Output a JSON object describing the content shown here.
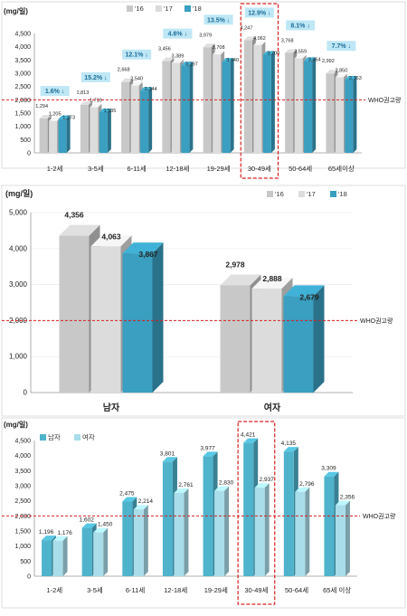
{
  "colors": {
    "c16": "#c8c8c8",
    "c17": "#dcdcdc",
    "c18": "#3a9fc0",
    "male": "#4fb3cc",
    "female": "#a9dde9",
    "who": "#d62020",
    "highlight": "#d62020",
    "badge_bg": "#bfe7f5",
    "badge_text": "#1a6d99"
  },
  "chart_data": [
    {
      "type": "bar",
      "unit_label": "(mg/일)",
      "categories": [
        "1-2세",
        "3-5세",
        "6-11세",
        "12-18세",
        "19-29세",
        "30-49세",
        "50-64세",
        "65세이상"
      ],
      "series": [
        {
          "name": "'16",
          "values": [
            1294,
            1813,
            2668,
            3456,
            3979,
            4247,
            3768,
            2992
          ]
        },
        {
          "name": "'17",
          "values": [
            1205,
            1719,
            2540,
            3389,
            3708,
            4062,
            3559,
            2850
          ]
        },
        {
          "name": "'18",
          "values": [
            1273,
            1535,
            2344,
            3297,
            3440,
            3700,
            3464,
            2763
          ]
        }
      ],
      "data_labels": [
        [
          "1,294",
          "1,205",
          "1,273"
        ],
        [
          "1,813",
          "1,719",
          "1,535"
        ],
        [
          "2,668",
          "2,540",
          "2,344"
        ],
        [
          "3,456",
          "3,389",
          "3,297"
        ],
        [
          "3,979",
          "3,708",
          "3,440"
        ],
        [
          "4,247",
          "4,062",
          "3,700"
        ],
        [
          "3,768",
          "3,559",
          "3,464"
        ],
        [
          "2,992",
          "2,850",
          "2,763"
        ]
      ],
      "change_badges": [
        "1.6% ↓",
        "15.2% ↓",
        "12.1% ↓",
        "4.6% ↓",
        "13.5% ↓",
        "12.9% ↓",
        "8.1% ↓",
        "7.7% ↓"
      ],
      "ylim": [
        0,
        4500
      ],
      "yticks": [
        "0",
        "500",
        "1,000",
        "1,500",
        "2,000",
        "2,500",
        "3,000",
        "3,500",
        "4,000",
        "4,500"
      ],
      "reference_line": {
        "value": 2000,
        "label": "WHO권고량"
      },
      "highlight_category": "30-49세",
      "legend": [
        "'16",
        "'17",
        "'18"
      ]
    },
    {
      "type": "bar",
      "unit_label": "(mg/일)",
      "categories": [
        "남자",
        "여자"
      ],
      "series": [
        {
          "name": "'16",
          "values": [
            4356,
            2978
          ]
        },
        {
          "name": "'17",
          "values": [
            4063,
            2888
          ]
        },
        {
          "name": "'18",
          "values": [
            3867,
            2679
          ]
        }
      ],
      "data_labels": [
        [
          "4,356",
          "4,063",
          "3,867"
        ],
        [
          "2,978",
          "2,888",
          "2,679"
        ]
      ],
      "ylim": [
        0,
        5000
      ],
      "yticks": [
        "0",
        "1,000",
        "2,000",
        "3,000",
        "4,000",
        "5,000"
      ],
      "reference_line": {
        "value": 2000,
        "label": "WHO권고량"
      },
      "legend": [
        "'16",
        "'17",
        "'18"
      ]
    },
    {
      "type": "bar",
      "unit_label": "(mg/일)",
      "categories": [
        "1-2세",
        "3-5세",
        "6-11세",
        "12-18세",
        "19-29세",
        "30-49세",
        "50-64세",
        "65세 이상"
      ],
      "series": [
        {
          "name": "남자",
          "values": [
            1196,
            1602,
            2475,
            3801,
            3977,
            4421,
            4135,
            3309
          ]
        },
        {
          "name": "여자",
          "values": [
            1176,
            1450,
            2214,
            2761,
            2830,
            2937,
            2796,
            2356
          ]
        }
      ],
      "data_labels": [
        [
          "1,196",
          "1,176"
        ],
        [
          "1,602",
          "1,450"
        ],
        [
          "2,475",
          "2,214"
        ],
        [
          "3,801",
          "2,761"
        ],
        [
          "3,977",
          "2,830"
        ],
        [
          "4,421",
          "2,937"
        ],
        [
          "4,135",
          "2,796"
        ],
        [
          "3,309",
          "2,356"
        ]
      ],
      "ylim": [
        0,
        4500
      ],
      "yticks": [
        "0",
        "500",
        "1,000",
        "1,500",
        "2,000",
        "2,500",
        "3,000",
        "3,500",
        "4,000",
        "4,500"
      ],
      "reference_line": {
        "value": 2000,
        "label": "WHO권고량"
      },
      "highlight_category": "30-49세",
      "legend": [
        "남자",
        "여자"
      ]
    }
  ]
}
